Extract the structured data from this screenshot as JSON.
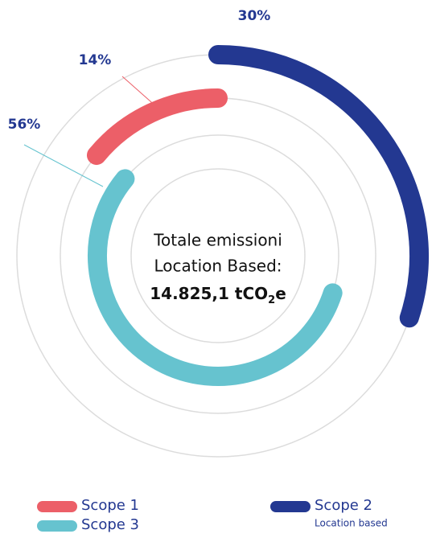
{
  "chart_data": {
    "type": "radial_bar",
    "series": [
      {
        "name": "Scope 1",
        "color": "#ec5f68",
        "values": [
          14
        ],
        "value_labels": [
          "14%"
        ]
      },
      {
        "name": "Scope 2",
        "subtitle": "Location based",
        "color": "#233891",
        "values": [
          30
        ],
        "value_labels": [
          "30%"
        ]
      },
      {
        "name": "Scope 3",
        "color": "#66c3cf",
        "values": [
          56
        ],
        "value_labels": [
          "56%"
        ]
      }
    ],
    "center_text": [
      "Totale emissioni",
      "Location Based:"
    ],
    "total": [
      "14.825,1 tCO",
      "2",
      "e"
    ]
  }
}
